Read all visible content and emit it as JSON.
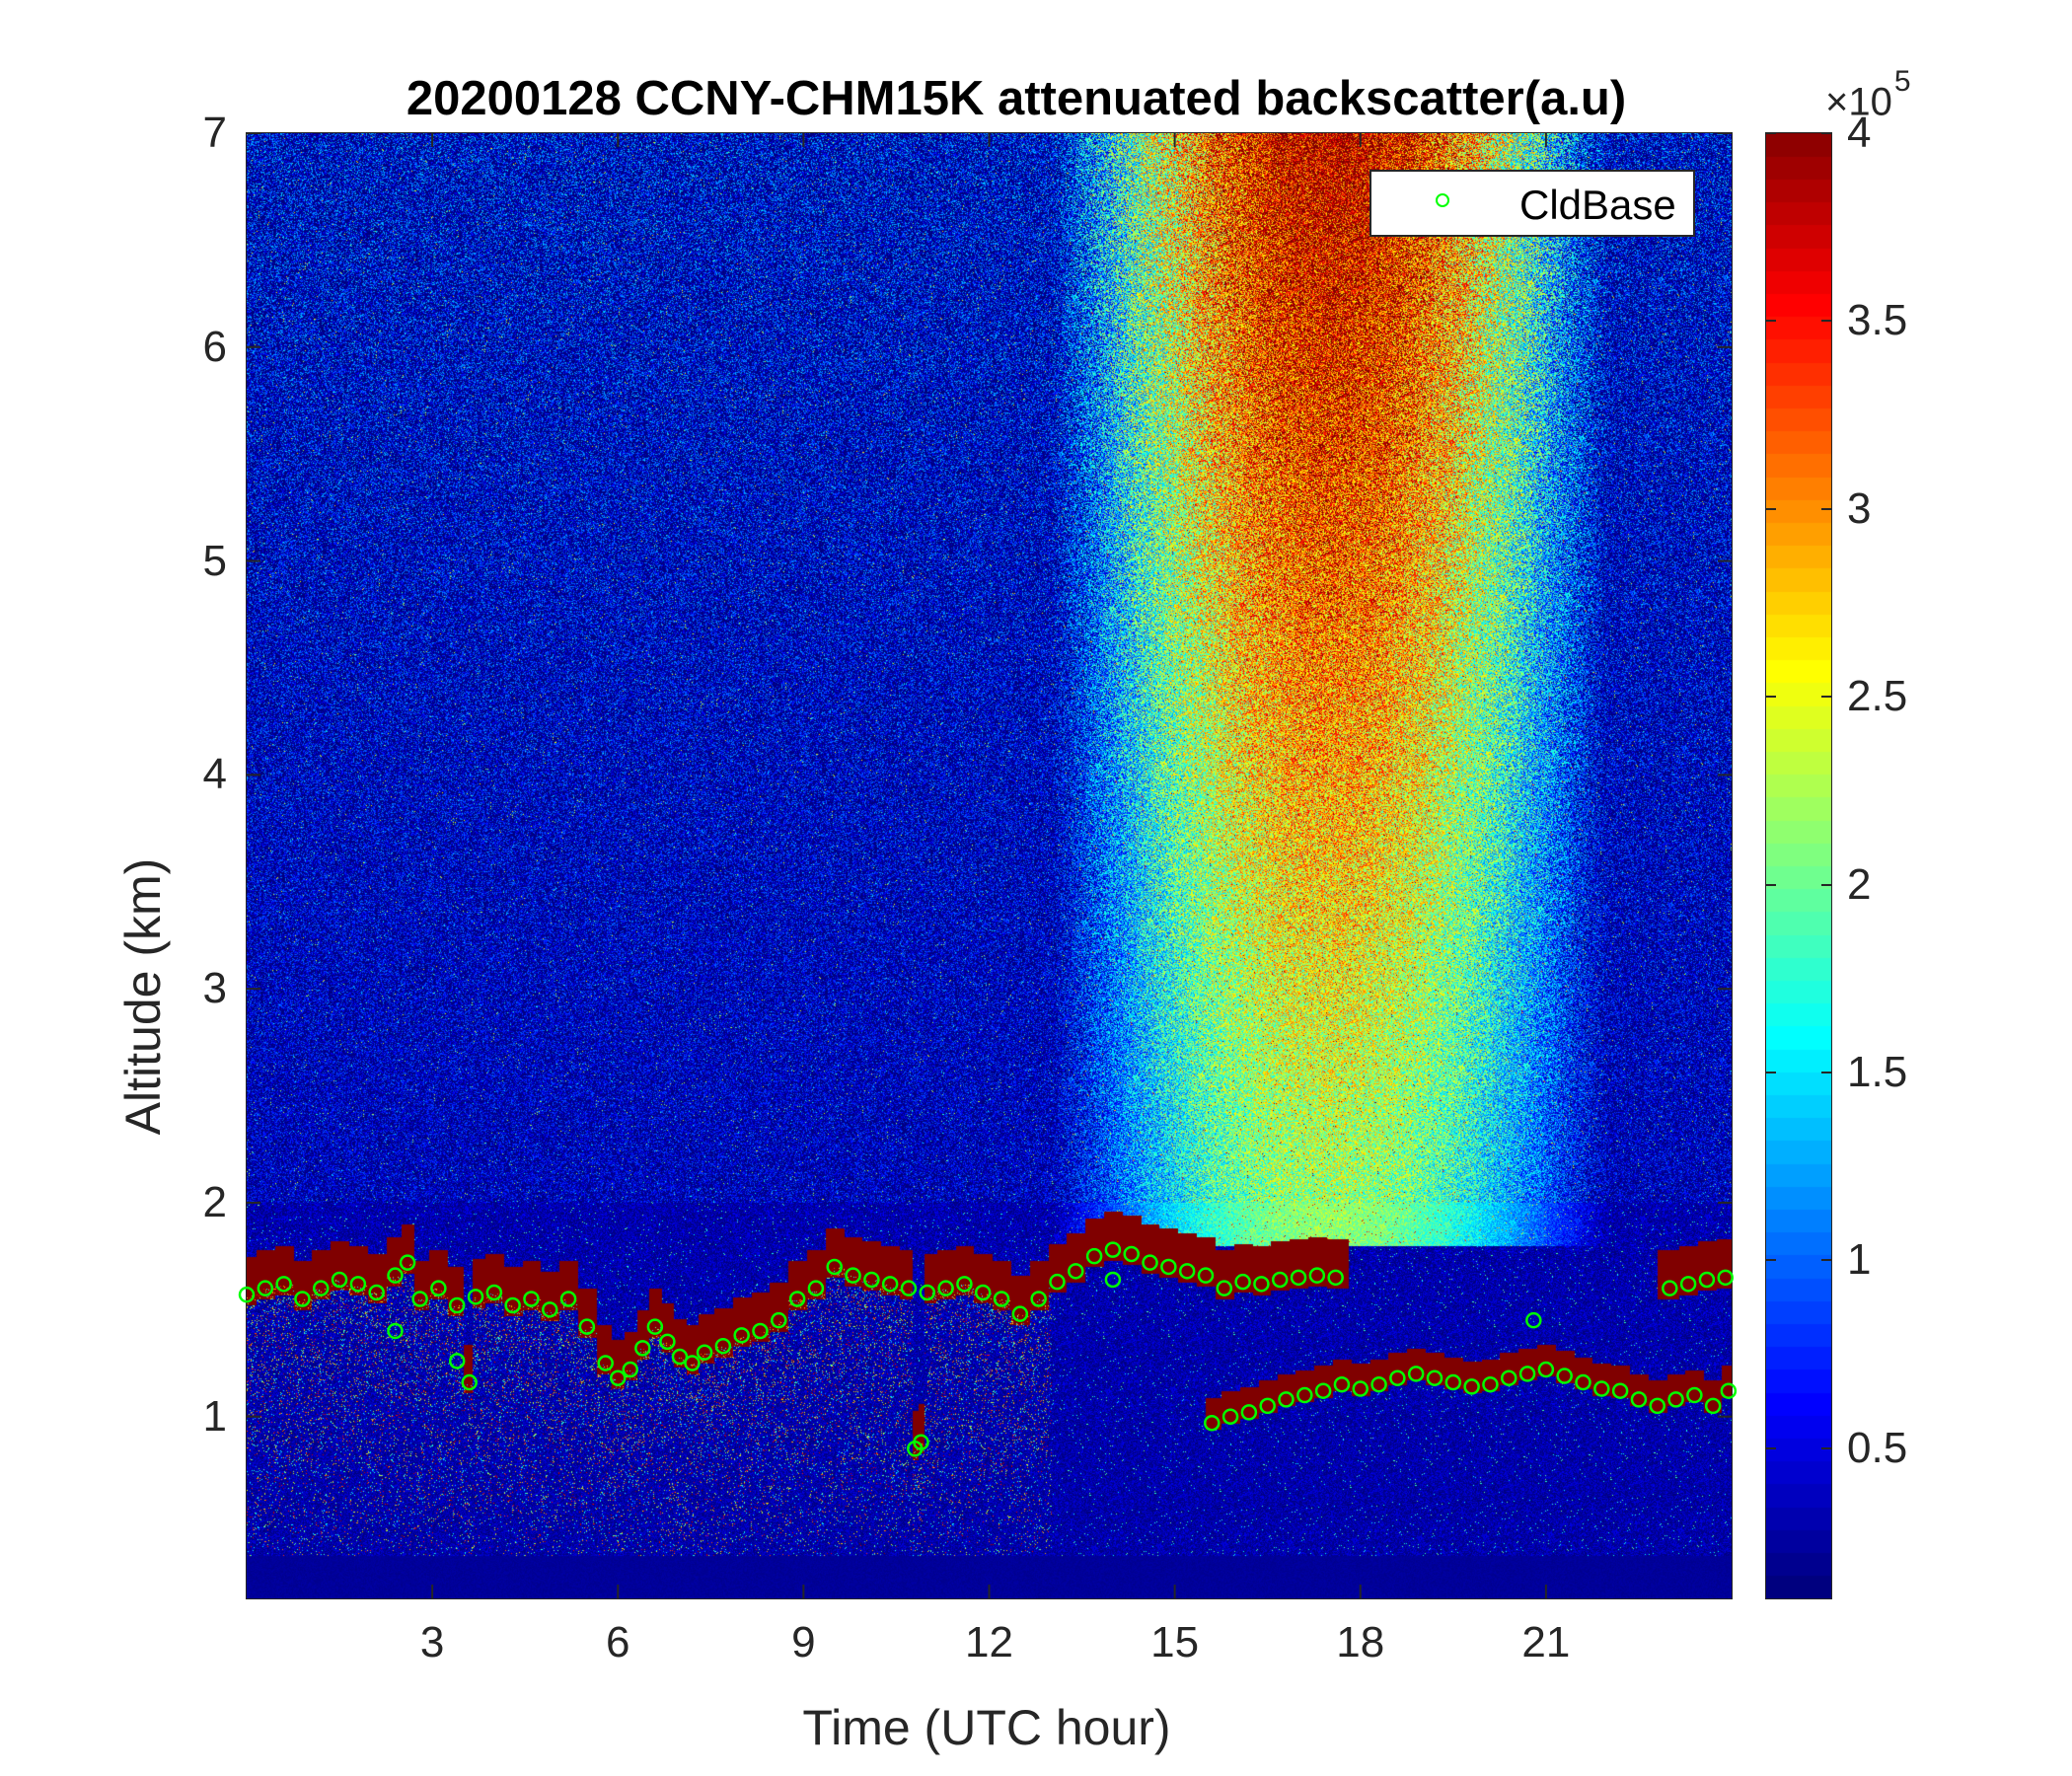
{
  "chart_data": {
    "type": "heatmap",
    "title": "20200128 CCNY-CHM15K attenuated backscatter(a.u)",
    "xlabel": "Time (UTC hour)",
    "ylabel": "Altitude (km)",
    "xlim": [
      0,
      24
    ],
    "ylim": [
      0.15,
      7
    ],
    "x_ticks": [
      3,
      6,
      9,
      12,
      15,
      18,
      21
    ],
    "y_ticks": [
      1,
      2,
      3,
      4,
      5,
      6,
      7
    ],
    "colorbar": {
      "colormap": "jet",
      "range": [
        0.1,
        4
      ],
      "ticks": [
        0.5,
        1,
        1.5,
        2,
        2.5,
        3,
        3.5,
        4
      ],
      "exponent_label": "×10",
      "exponent_power": "5"
    },
    "legend": {
      "entries": [
        "CldBase"
      ],
      "location": "top-right"
    },
    "series": [
      {
        "name": "CldBase",
        "marker": "circle-open",
        "color": "#00ff00",
        "points": [
          [
            0.0,
            1.57
          ],
          [
            0.3,
            1.6
          ],
          [
            0.6,
            1.62
          ],
          [
            0.9,
            1.55
          ],
          [
            1.2,
            1.6
          ],
          [
            1.5,
            1.64
          ],
          [
            1.8,
            1.62
          ],
          [
            2.1,
            1.58
          ],
          [
            2.4,
            1.66
          ],
          [
            2.6,
            1.72
          ],
          [
            2.8,
            1.55
          ],
          [
            3.1,
            1.6
          ],
          [
            3.4,
            1.52
          ],
          [
            3.7,
            1.56
          ],
          [
            4.0,
            1.58
          ],
          [
            4.3,
            1.52
          ],
          [
            4.6,
            1.55
          ],
          [
            4.9,
            1.5
          ],
          [
            5.2,
            1.55
          ],
          [
            5.5,
            1.42
          ],
          [
            5.8,
            1.25
          ],
          [
            6.0,
            1.18
          ],
          [
            6.2,
            1.22
          ],
          [
            6.4,
            1.32
          ],
          [
            6.6,
            1.42
          ],
          [
            6.8,
            1.35
          ],
          [
            7.0,
            1.28
          ],
          [
            7.2,
            1.25
          ],
          [
            7.4,
            1.3
          ],
          [
            7.7,
            1.33
          ],
          [
            8.0,
            1.38
          ],
          [
            8.3,
            1.4
          ],
          [
            8.6,
            1.45
          ],
          [
            8.9,
            1.55
          ],
          [
            9.2,
            1.6
          ],
          [
            9.5,
            1.7
          ],
          [
            9.8,
            1.66
          ],
          [
            10.1,
            1.64
          ],
          [
            10.4,
            1.62
          ],
          [
            10.7,
            1.6
          ],
          [
            11.0,
            1.58
          ],
          [
            11.3,
            1.6
          ],
          [
            11.6,
            1.62
          ],
          [
            11.9,
            1.58
          ],
          [
            12.2,
            1.55
          ],
          [
            12.5,
            1.48
          ],
          [
            12.8,
            1.55
          ],
          [
            13.1,
            1.63
          ],
          [
            13.4,
            1.68
          ],
          [
            13.7,
            1.75
          ],
          [
            14.0,
            1.78
          ],
          [
            14.3,
            1.76
          ],
          [
            14.6,
            1.72
          ],
          [
            14.9,
            1.7
          ],
          [
            15.2,
            1.68
          ],
          [
            15.5,
            1.66
          ],
          [
            15.8,
            1.6
          ],
          [
            16.1,
            1.63
          ],
          [
            16.4,
            1.62
          ],
          [
            16.7,
            1.64
          ],
          [
            17.0,
            1.65
          ],
          [
            17.3,
            1.66
          ],
          [
            17.6,
            1.65
          ],
          [
            10.8,
            0.85
          ],
          [
            10.9,
            0.88
          ],
          [
            14.0,
            1.64
          ],
          [
            15.6,
            0.97
          ],
          [
            15.9,
            1.0
          ],
          [
            16.2,
            1.02
          ],
          [
            16.5,
            1.05
          ],
          [
            16.8,
            1.08
          ],
          [
            17.1,
            1.1
          ],
          [
            17.4,
            1.12
          ],
          [
            17.7,
            1.15
          ],
          [
            18.0,
            1.13
          ],
          [
            18.3,
            1.15
          ],
          [
            18.6,
            1.18
          ],
          [
            18.9,
            1.2
          ],
          [
            19.2,
            1.18
          ],
          [
            19.5,
            1.16
          ],
          [
            19.8,
            1.14
          ],
          [
            20.1,
            1.15
          ],
          [
            20.4,
            1.18
          ],
          [
            20.7,
            1.2
          ],
          [
            21.0,
            1.22
          ],
          [
            21.3,
            1.19
          ],
          [
            21.6,
            1.16
          ],
          [
            21.9,
            1.13
          ],
          [
            22.2,
            1.12
          ],
          [
            22.5,
            1.08
          ],
          [
            22.8,
            1.05
          ],
          [
            23.1,
            1.08
          ],
          [
            23.4,
            1.1
          ],
          [
            23.7,
            1.05
          ],
          [
            23.95,
            1.12
          ],
          [
            23.0,
            1.6
          ],
          [
            23.3,
            1.62
          ],
          [
            23.6,
            1.64
          ],
          [
            23.9,
            1.65
          ],
          [
            20.8,
            1.45
          ],
          [
            3.4,
            1.26
          ],
          [
            3.6,
            1.16
          ],
          [
            2.4,
            1.4
          ]
        ]
      }
    ]
  }
}
